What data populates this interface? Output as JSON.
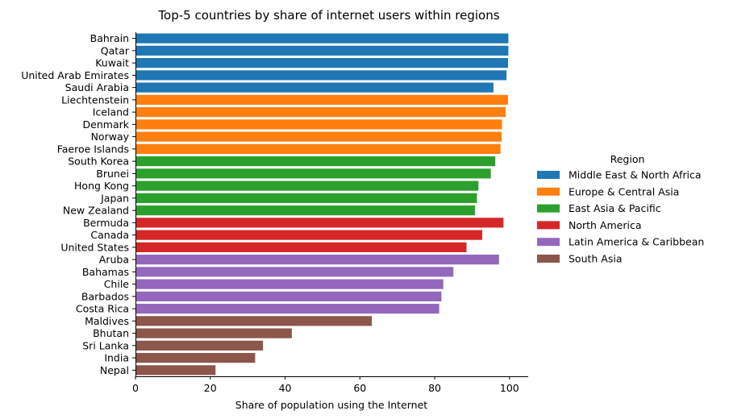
{
  "chart_data": {
    "type": "bar",
    "orientation": "horizontal",
    "title": "Top-5 countries by share of internet users within regions",
    "xlabel": "Share of population using the Internet",
    "ylabel": "",
    "xlim": [
      0,
      105
    ],
    "xticks": [
      0,
      20,
      40,
      60,
      80,
      100
    ],
    "grid": false,
    "legend": {
      "title": "Region",
      "placement": "right",
      "entries": [
        {
          "name": "Middle East & North Africa",
          "color": "#1f77b4"
        },
        {
          "name": "Europe & Central Asia",
          "color": "#ff7f0e"
        },
        {
          "name": "East Asia & Pacific",
          "color": "#2ca02c"
        },
        {
          "name": "North America",
          "color": "#d62728"
        },
        {
          "name": "Latin America & Caribbean",
          "color": "#9467bd"
        },
        {
          "name": "South Asia",
          "color": "#8c564b"
        }
      ]
    },
    "bars": [
      {
        "country": "Bahrain",
        "value": 99.7,
        "region": "Middle East & North Africa"
      },
      {
        "country": "Qatar",
        "value": 99.7,
        "region": "Middle East & North Africa"
      },
      {
        "country": "Kuwait",
        "value": 99.6,
        "region": "Middle East & North Africa"
      },
      {
        "country": "United Arab Emirates",
        "value": 99.2,
        "region": "Middle East & North Africa"
      },
      {
        "country": "Saudi Arabia",
        "value": 95.7,
        "region": "Middle East & North Africa"
      },
      {
        "country": "Liechtenstein",
        "value": 99.6,
        "region": "Europe & Central Asia"
      },
      {
        "country": "Iceland",
        "value": 99.0,
        "region": "Europe & Central Asia"
      },
      {
        "country": "Denmark",
        "value": 98.0,
        "region": "Europe & Central Asia"
      },
      {
        "country": "Norway",
        "value": 97.9,
        "region": "Europe & Central Asia"
      },
      {
        "country": "Faeroe Islands",
        "value": 97.6,
        "region": "Europe & Central Asia"
      },
      {
        "country": "South Korea",
        "value": 96.2,
        "region": "East Asia & Pacific"
      },
      {
        "country": "Brunei",
        "value": 95.0,
        "region": "East Asia & Pacific"
      },
      {
        "country": "Hong Kong",
        "value": 91.7,
        "region": "East Asia & Pacific"
      },
      {
        "country": "Japan",
        "value": 91.3,
        "region": "East Asia & Pacific"
      },
      {
        "country": "New Zealand",
        "value": 90.8,
        "region": "East Asia & Pacific"
      },
      {
        "country": "Bermuda",
        "value": 98.4,
        "region": "North America"
      },
      {
        "country": "Canada",
        "value": 92.7,
        "region": "North America"
      },
      {
        "country": "United States",
        "value": 88.5,
        "region": "North America"
      },
      {
        "country": "Aruba",
        "value": 97.2,
        "region": "Latin America & Caribbean"
      },
      {
        "country": "Bahamas",
        "value": 85.0,
        "region": "Latin America & Caribbean"
      },
      {
        "country": "Chile",
        "value": 82.3,
        "region": "Latin America & Caribbean"
      },
      {
        "country": "Barbados",
        "value": 81.8,
        "region": "Latin America & Caribbean"
      },
      {
        "country": "Costa Rica",
        "value": 81.2,
        "region": "Latin America & Caribbean"
      },
      {
        "country": "Maldives",
        "value": 63.2,
        "region": "South Asia"
      },
      {
        "country": "Bhutan",
        "value": 41.8,
        "region": "South Asia"
      },
      {
        "country": "Sri Lanka",
        "value": 34.1,
        "region": "South Asia"
      },
      {
        "country": "India",
        "value": 32.0,
        "region": "South Asia"
      },
      {
        "country": "Nepal",
        "value": 21.4,
        "region": "South Asia"
      }
    ]
  }
}
